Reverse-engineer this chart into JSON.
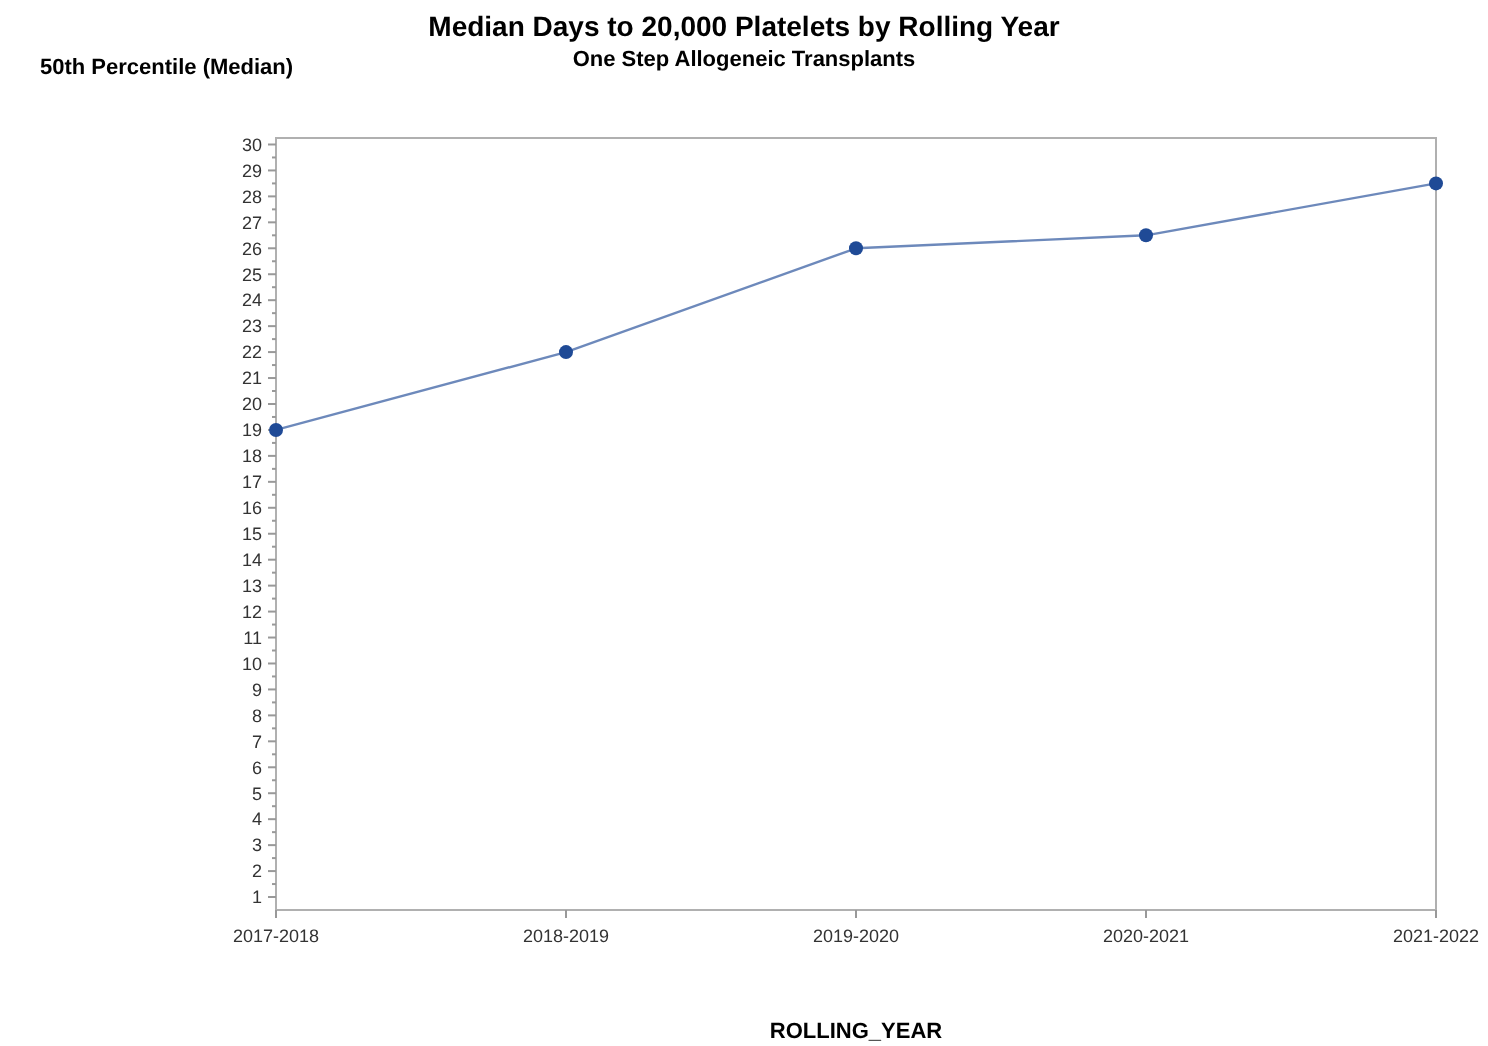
{
  "chart_data": {
    "type": "line",
    "title": "Median Days to 20,000 Platelets by Rolling Year",
    "subtitle": "One Step Allogeneic Transplants",
    "xlabel": "ROLLING_YEAR",
    "ylabel": "50th Percentile (Median)",
    "categories": [
      "2017-2018",
      "2018-2019",
      "2019-2020",
      "2020-2021",
      "2021-2022"
    ],
    "series": [
      {
        "color": "#1f4a96",
        "values": [
          19,
          22,
          26,
          26.5,
          28.5
        ]
      }
    ],
    "ylim": [
      0.5,
      30.25
    ],
    "yticks": [
      1,
      2,
      3,
      4,
      5,
      6,
      7,
      8,
      9,
      10,
      11,
      12,
      13,
      14,
      15,
      16,
      17,
      18,
      19,
      20,
      21,
      22,
      23,
      24,
      25,
      26,
      27,
      28,
      29,
      30,
      {
        "value": 1.5,
        "label": null
      },
      {
        "value": 2.5,
        "label": null
      },
      {
        "value": 3.5,
        "label": null
      },
      {
        "value": 4.5,
        "label": null
      },
      {
        "value": 5.5,
        "label": null
      },
      {
        "value": 6.5,
        "label": null
      },
      {
        "value": 7.5,
        "label": null
      },
      {
        "value": 8.5,
        "label": null
      },
      {
        "value": 9.5,
        "label": null
      },
      {
        "value": 10.5,
        "label": null
      },
      {
        "value": 11.5,
        "label": null
      },
      {
        "value": 12.5,
        "label": null
      },
      {
        "value": 13.5,
        "label": null
      },
      {
        "value": 14.5,
        "label": null
      },
      {
        "value": 15.5,
        "label": null
      },
      {
        "value": 16.5,
        "label": null
      },
      {
        "value": 17.5,
        "label": null
      },
      {
        "value": 18.5,
        "label": null
      },
      {
        "value": 19.5,
        "label": null
      },
      {
        "value": 20.5,
        "label": null
      },
      {
        "value": 21.5,
        "label": null
      },
      {
        "value": 22.5,
        "label": null
      },
      {
        "value": 23.5,
        "label": null
      },
      {
        "value": 24.5,
        "label": null
      },
      {
        "value": 25.5,
        "label": null
      },
      {
        "value": 26.5,
        "label": null
      },
      {
        "value": 27.5,
        "label": null
      },
      {
        "value": 28.5,
        "label": null
      },
      {
        "value": 29.5,
        "label": null
      }
    ],
    "grid": false,
    "marker": "circle",
    "line_style": "solid"
  }
}
